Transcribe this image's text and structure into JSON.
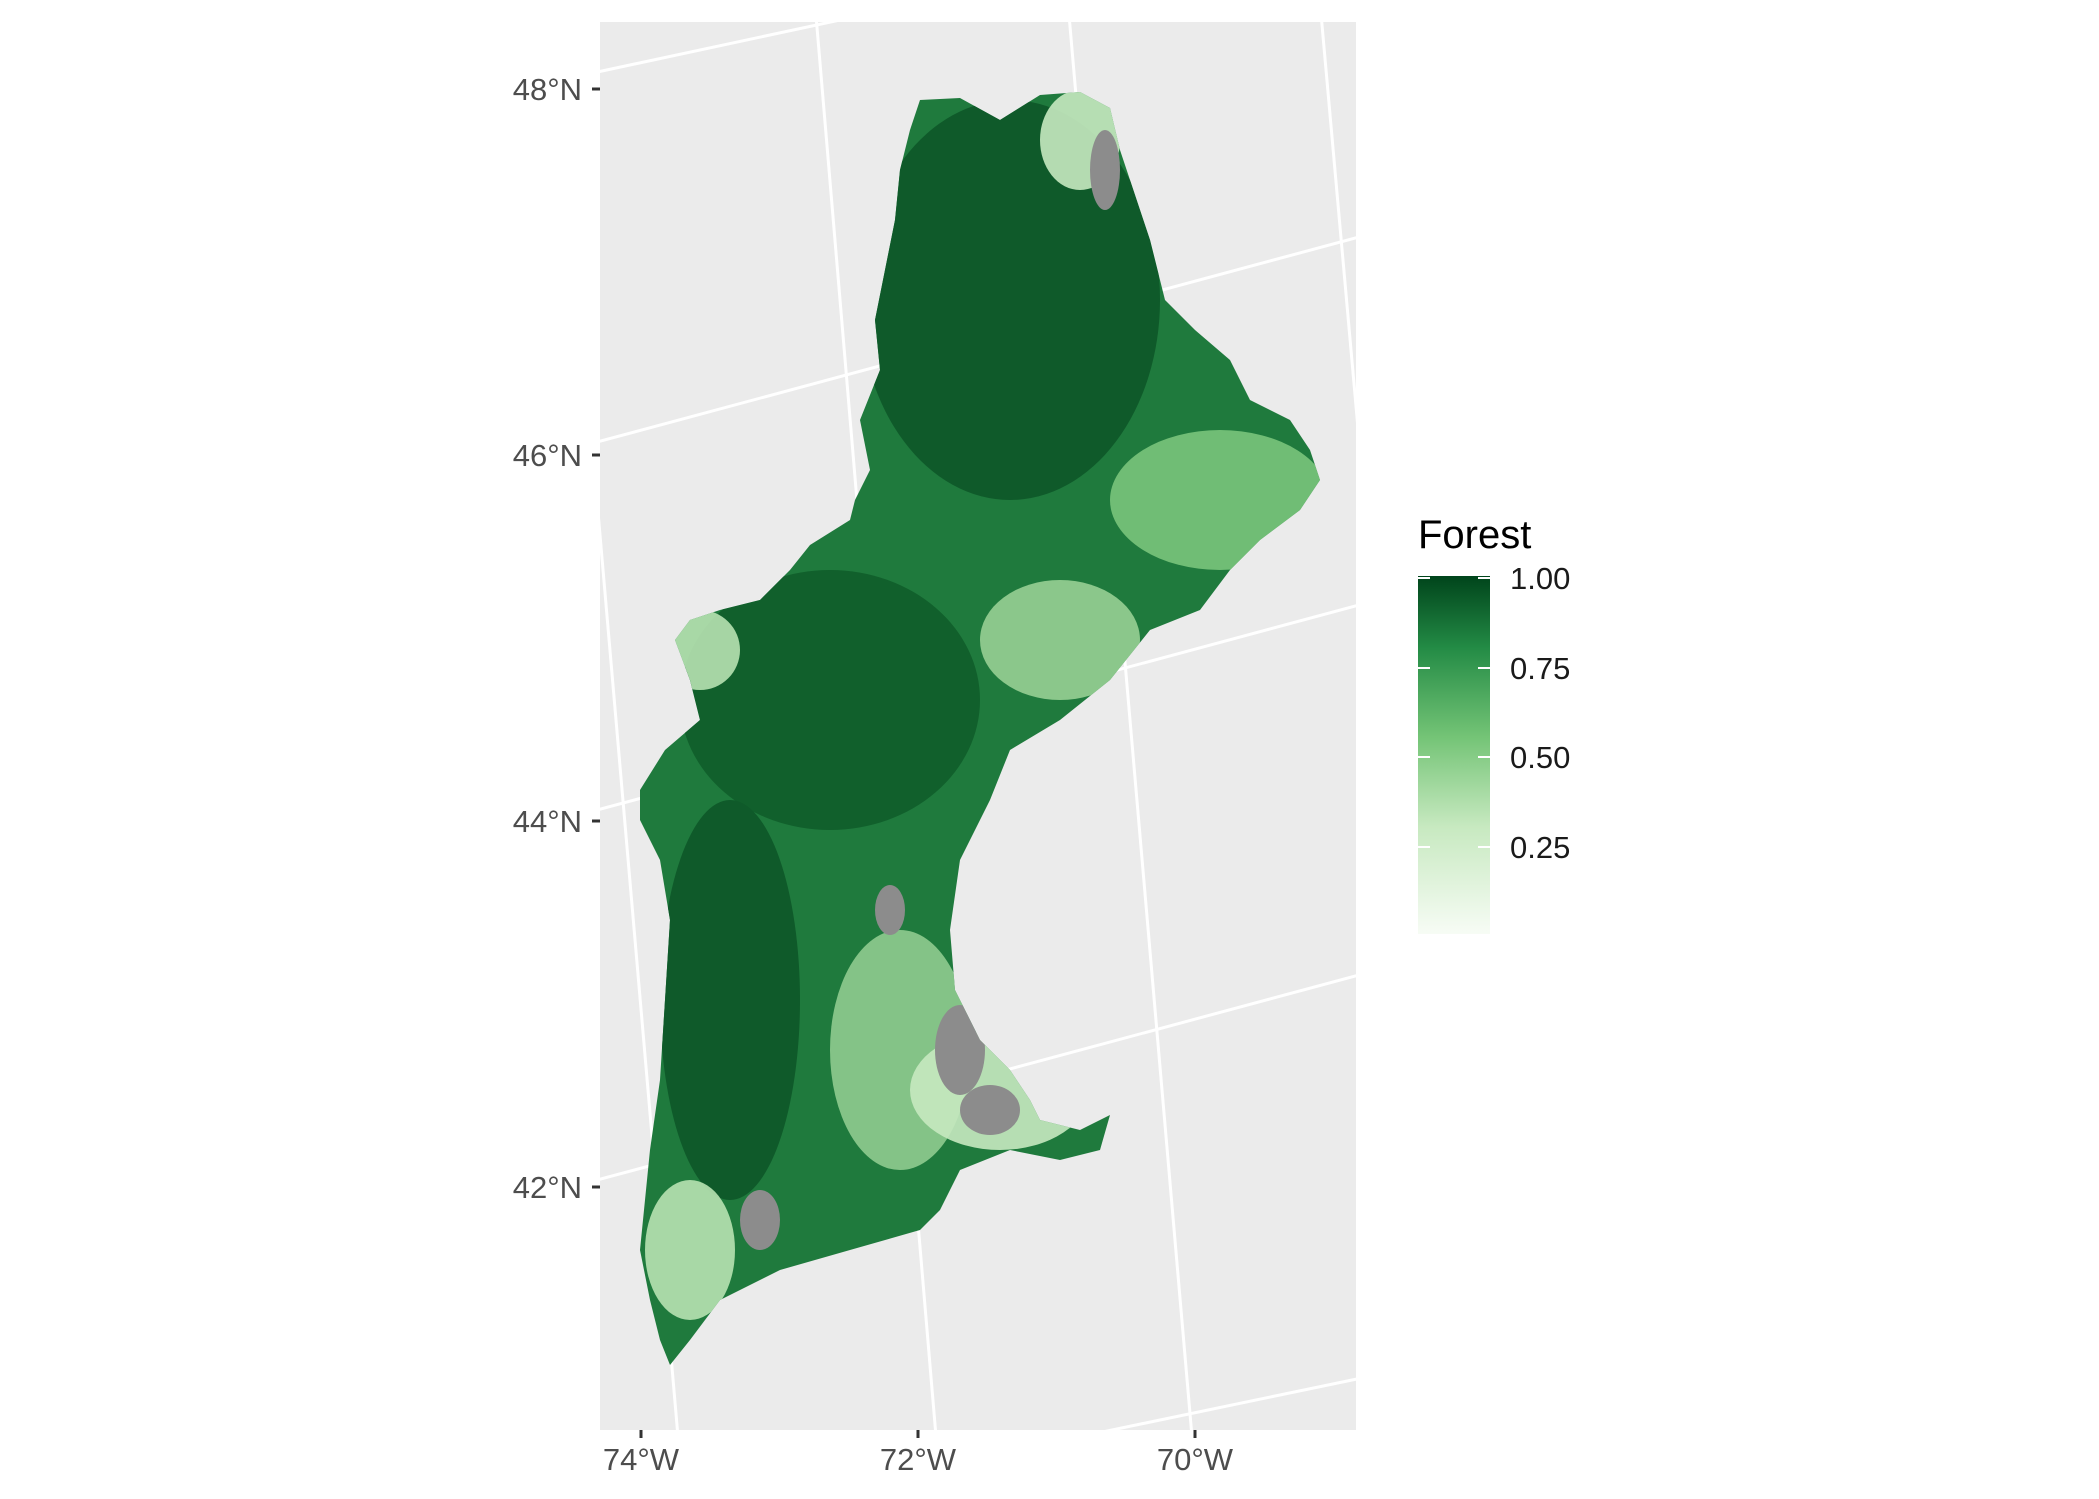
{
  "map": {
    "latitude_labels": [
      "48°N",
      "46°N",
      "44°N",
      "42°N"
    ],
    "longitude_labels": [
      "74°W",
      "72°W",
      "70°W"
    ],
    "panel_background": "#ebebeb",
    "graticule_color": "#ffffff",
    "missing_color": "#8c8c8c"
  },
  "legend": {
    "title": "Forest",
    "tick_labels": [
      "1.00",
      "0.75",
      "0.50",
      "0.25"
    ],
    "colors": {
      "low": "#f7fcf5",
      "mid_low": "#c7e9c0",
      "mid": "#74c476",
      "mid_high": "#238b45",
      "high": "#00441b"
    }
  },
  "chart_data": {
    "type": "heatmap",
    "title": "",
    "xlabel": "",
    "ylabel": "",
    "x_ticks": [
      "74°W",
      "72°W",
      "70°W"
    ],
    "y_ticks": [
      "48°N",
      "46°N",
      "44°N",
      "42°N"
    ],
    "xlim": [
      -74.3,
      -69.0
    ],
    "ylim": [
      40.8,
      48.4
    ],
    "fill_variable": "Forest",
    "fill_range": [
      0,
      1
    ],
    "legend_breaks": [
      0.25,
      0.5,
      0.75,
      1.0
    ],
    "legend_position": "right",
    "grid": true
  }
}
